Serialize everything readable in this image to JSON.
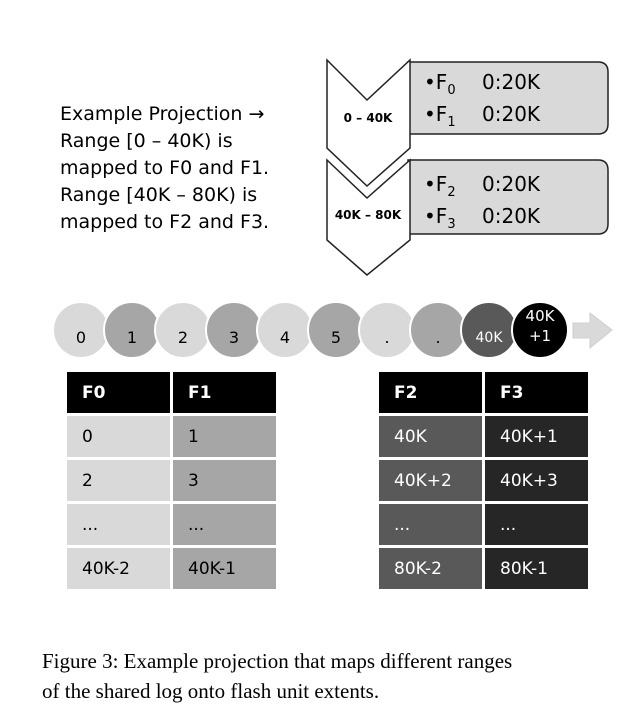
{
  "description_lines": [
    "Example Projection →",
    "Range [0 – 40K) is",
    "mapped to F0 and F1.",
    "Range [40K – 80K) is",
    "mapped to F2 and F3."
  ],
  "chevrons": [
    {
      "label": "0 – 40K",
      "entries": [
        {
          "unit": "F",
          "sub": "0",
          "range": "0:20K"
        },
        {
          "unit": "F",
          "sub": "1",
          "range": "0:20K"
        }
      ]
    },
    {
      "label": "40K – 80K",
      "entries": [
        {
          "unit": "F",
          "sub": "2",
          "range": "0:20K"
        },
        {
          "unit": "F",
          "sub": "3",
          "range": "0:20K"
        }
      ]
    }
  ],
  "log_entries": [
    "0",
    "1",
    "2",
    "3",
    "4",
    "5",
    ".",
    ".",
    "40K",
    "40K +1"
  ],
  "colors": {
    "light_gray": "#d9d9d9",
    "mid_gray": "#a6a6a6",
    "dark_gray": "#595959",
    "very_dark": "#262626",
    "header": "#000000",
    "panel": "#d9d9d9",
    "arrow": "#d9d9d9"
  },
  "table_left": {
    "headers": [
      "F0",
      "F1"
    ],
    "rows": [
      [
        "0",
        "1"
      ],
      [
        "2",
        "3"
      ],
      [
        "...",
        "..."
      ],
      [
        "40K-2",
        "40K-1"
      ]
    ]
  },
  "table_right": {
    "headers": [
      "F2",
      "F3"
    ],
    "rows": [
      [
        "40K",
        "40K+1"
      ],
      [
        "40K+2",
        "40K+3"
      ],
      [
        "...",
        "..."
      ],
      [
        "80K-2",
        "80K-1"
      ]
    ]
  },
  "caption_lines": [
    "Figure 3: Example projection that maps different ranges",
    "of the shared log onto flash unit extents."
  ]
}
